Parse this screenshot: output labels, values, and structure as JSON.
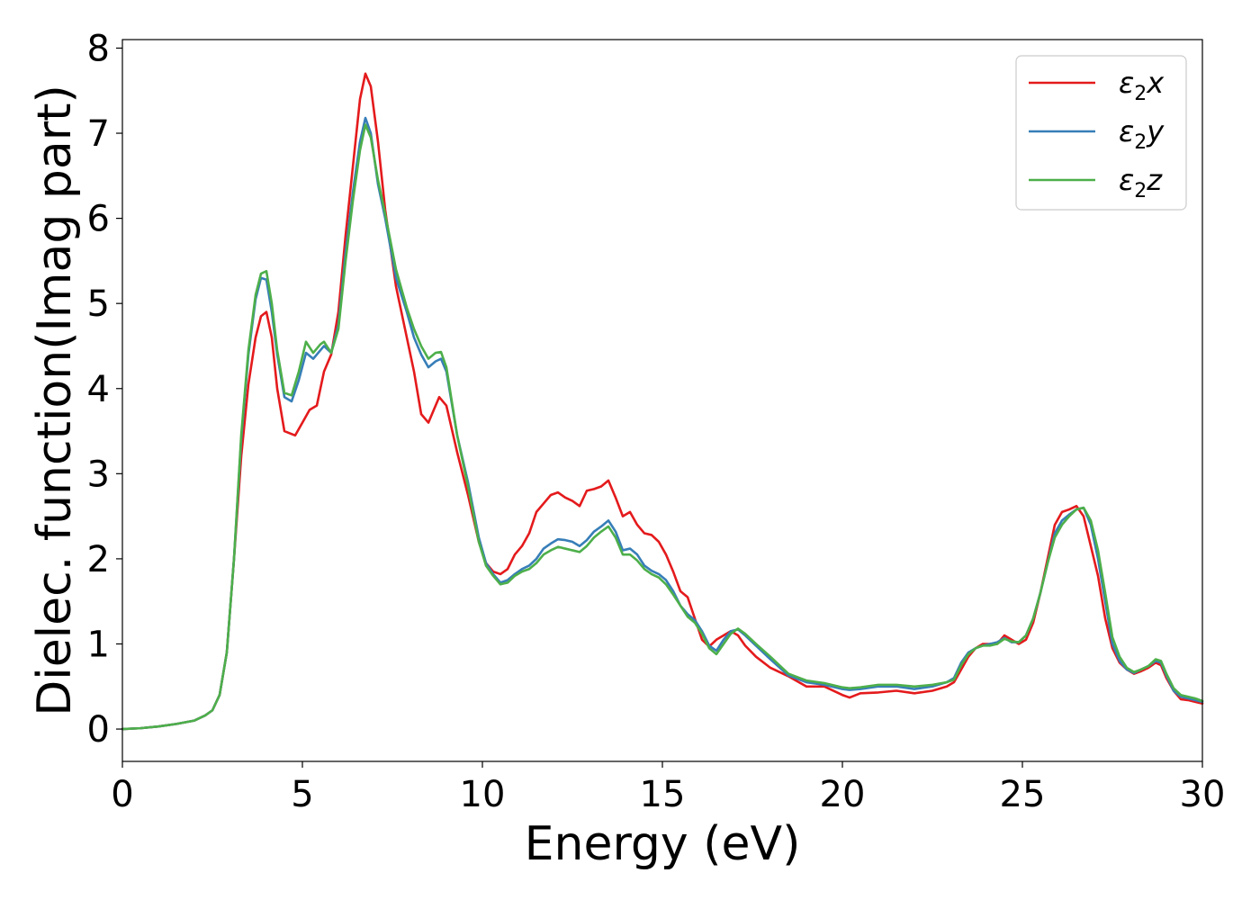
{
  "chart_data": {
    "type": "line",
    "title": "",
    "xlabel": "Energy (eV)",
    "ylabel": "Dielec. function(Imag part)",
    "xlim": [
      0,
      30
    ],
    "ylim": [
      -0.38,
      8.1
    ],
    "xticks": [
      0,
      5,
      10,
      15,
      20,
      25,
      30
    ],
    "yticks": [
      0,
      1,
      2,
      3,
      4,
      5,
      6,
      7,
      8
    ],
    "grid": false,
    "legend_position": "top-right",
    "series": [
      {
        "name": "ε₂x",
        "legend_base": "ε",
        "legend_sub": "2",
        "legend_suffix": "x",
        "color": "#e41a1c",
        "x": [
          0,
          0.5,
          1,
          1.5,
          2,
          2.3,
          2.5,
          2.7,
          2.9,
          3.1,
          3.3,
          3.5,
          3.7,
          3.85,
          4.0,
          4.15,
          4.3,
          4.5,
          4.8,
          5.0,
          5.2,
          5.4,
          5.6,
          5.8,
          6.0,
          6.2,
          6.4,
          6.6,
          6.75,
          6.9,
          7.1,
          7.3,
          7.6,
          7.9,
          8.1,
          8.3,
          8.5,
          8.65,
          8.8,
          9.0,
          9.3,
          9.6,
          9.9,
          10.1,
          10.3,
          10.5,
          10.7,
          10.9,
          11.1,
          11.3,
          11.5,
          11.7,
          11.9,
          12.1,
          12.3,
          12.5,
          12.7,
          12.9,
          13.1,
          13.3,
          13.5,
          13.7,
          13.9,
          14.1,
          14.3,
          14.5,
          14.7,
          14.9,
          15.1,
          15.3,
          15.5,
          15.7,
          15.9,
          16.1,
          16.3,
          16.5,
          16.7,
          16.9,
          17.1,
          17.3,
          17.6,
          18.0,
          18.5,
          19.0,
          19.5,
          20.0,
          20.2,
          20.5,
          21.0,
          21.5,
          22.0,
          22.5,
          22.9,
          23.1,
          23.3,
          23.5,
          23.7,
          23.9,
          24.1,
          24.3,
          24.5,
          24.7,
          24.9,
          25.1,
          25.3,
          25.5,
          25.7,
          25.9,
          26.1,
          26.3,
          26.5,
          26.7,
          26.9,
          27.1,
          27.3,
          27.5,
          27.7,
          27.9,
          28.1,
          28.3,
          28.5,
          28.7,
          28.85,
          29.0,
          29.2,
          29.4,
          29.6,
          29.8,
          30.0
        ],
        "values": [
          0.0,
          0.01,
          0.03,
          0.06,
          0.1,
          0.16,
          0.22,
          0.4,
          0.9,
          2.0,
          3.2,
          4.05,
          4.6,
          4.85,
          4.9,
          4.6,
          4.0,
          3.5,
          3.45,
          3.6,
          3.75,
          3.8,
          4.2,
          4.4,
          4.9,
          5.8,
          6.6,
          7.4,
          7.7,
          7.55,
          6.9,
          6.1,
          5.2,
          4.6,
          4.2,
          3.7,
          3.6,
          3.75,
          3.9,
          3.8,
          3.25,
          2.75,
          2.2,
          1.95,
          1.85,
          1.82,
          1.88,
          2.05,
          2.15,
          2.3,
          2.55,
          2.65,
          2.75,
          2.78,
          2.72,
          2.68,
          2.62,
          2.8,
          2.82,
          2.85,
          2.92,
          2.72,
          2.5,
          2.55,
          2.4,
          2.3,
          2.28,
          2.2,
          2.05,
          1.85,
          1.62,
          1.55,
          1.3,
          1.05,
          0.97,
          1.05,
          1.1,
          1.15,
          1.1,
          0.98,
          0.85,
          0.72,
          0.62,
          0.5,
          0.5,
          0.4,
          0.37,
          0.42,
          0.43,
          0.45,
          0.42,
          0.45,
          0.5,
          0.55,
          0.7,
          0.85,
          0.95,
          1.0,
          1.0,
          1.0,
          1.1,
          1.05,
          1.0,
          1.05,
          1.25,
          1.6,
          2.0,
          2.4,
          2.55,
          2.58,
          2.62,
          2.5,
          2.15,
          1.8,
          1.3,
          0.95,
          0.78,
          0.7,
          0.65,
          0.68,
          0.72,
          0.78,
          0.75,
          0.6,
          0.45,
          0.35,
          0.34,
          0.32,
          0.3
        ]
      },
      {
        "name": "ε₂y",
        "legend_base": "ε",
        "legend_sub": "2",
        "legend_suffix": "y",
        "color": "#377eb8",
        "x": [
          0,
          0.5,
          1,
          1.5,
          2,
          2.3,
          2.5,
          2.7,
          2.9,
          3.1,
          3.3,
          3.5,
          3.7,
          3.85,
          4.0,
          4.15,
          4.3,
          4.5,
          4.7,
          4.9,
          5.1,
          5.3,
          5.5,
          5.6,
          5.8,
          6.0,
          6.2,
          6.4,
          6.6,
          6.75,
          6.9,
          7.1,
          7.3,
          7.6,
          7.9,
          8.1,
          8.3,
          8.5,
          8.7,
          8.85,
          9.0,
          9.3,
          9.6,
          9.9,
          10.1,
          10.3,
          10.5,
          10.7,
          10.9,
          11.1,
          11.3,
          11.5,
          11.7,
          11.9,
          12.1,
          12.3,
          12.5,
          12.7,
          12.9,
          13.1,
          13.3,
          13.5,
          13.7,
          13.9,
          14.1,
          14.3,
          14.5,
          14.7,
          14.9,
          15.1,
          15.3,
          15.5,
          15.7,
          15.9,
          16.1,
          16.3,
          16.5,
          16.7,
          16.9,
          17.1,
          17.3,
          17.6,
          18.0,
          18.5,
          19.0,
          19.5,
          20.0,
          20.2,
          20.5,
          21.0,
          21.5,
          22.0,
          22.5,
          22.9,
          23.1,
          23.3,
          23.5,
          23.7,
          23.9,
          24.1,
          24.3,
          24.5,
          24.7,
          24.9,
          25.1,
          25.3,
          25.5,
          25.7,
          25.9,
          26.1,
          26.3,
          26.5,
          26.7,
          26.9,
          27.1,
          27.3,
          27.5,
          27.7,
          27.9,
          28.1,
          28.3,
          28.5,
          28.7,
          28.85,
          29.0,
          29.2,
          29.4,
          29.6,
          29.8,
          30.0
        ],
        "values": [
          0.0,
          0.01,
          0.03,
          0.06,
          0.1,
          0.16,
          0.22,
          0.4,
          0.9,
          2.0,
          3.4,
          4.4,
          5.05,
          5.3,
          5.28,
          4.9,
          4.4,
          3.9,
          3.85,
          4.1,
          4.42,
          4.35,
          4.45,
          4.5,
          4.42,
          4.75,
          5.6,
          6.3,
          6.9,
          7.18,
          7.0,
          6.4,
          6.0,
          5.3,
          4.9,
          4.6,
          4.4,
          4.25,
          4.32,
          4.35,
          4.2,
          3.45,
          2.9,
          2.25,
          1.95,
          1.82,
          1.72,
          1.75,
          1.82,
          1.88,
          1.92,
          2.0,
          2.12,
          2.18,
          2.23,
          2.22,
          2.2,
          2.15,
          2.22,
          2.32,
          2.38,
          2.45,
          2.32,
          2.1,
          2.12,
          2.05,
          1.92,
          1.86,
          1.82,
          1.75,
          1.62,
          1.45,
          1.35,
          1.28,
          1.15,
          0.98,
          0.92,
          1.05,
          1.15,
          1.17,
          1.1,
          0.98,
          0.82,
          0.63,
          0.55,
          0.52,
          0.47,
          0.46,
          0.47,
          0.5,
          0.5,
          0.47,
          0.5,
          0.55,
          0.6,
          0.78,
          0.9,
          0.95,
          0.98,
          1.0,
          1.02,
          1.07,
          1.02,
          1.02,
          1.1,
          1.3,
          1.6,
          1.95,
          2.3,
          2.45,
          2.52,
          2.58,
          2.6,
          2.4,
          2.0,
          1.5,
          1.0,
          0.8,
          0.7,
          0.66,
          0.7,
          0.74,
          0.8,
          0.78,
          0.63,
          0.45,
          0.38,
          0.36,
          0.34,
          0.32
        ]
      },
      {
        "name": "ε₂z",
        "legend_base": "ε",
        "legend_sub": "2",
        "legend_suffix": "z",
        "color": "#4daf4a",
        "x": [
          0,
          0.5,
          1,
          1.5,
          2,
          2.3,
          2.5,
          2.7,
          2.9,
          3.1,
          3.3,
          3.5,
          3.7,
          3.85,
          4.0,
          4.15,
          4.3,
          4.5,
          4.7,
          4.9,
          5.1,
          5.3,
          5.5,
          5.6,
          5.8,
          6.0,
          6.2,
          6.4,
          6.6,
          6.75,
          6.9,
          7.1,
          7.3,
          7.6,
          7.9,
          8.1,
          8.3,
          8.5,
          8.7,
          8.85,
          9.0,
          9.3,
          9.6,
          9.9,
          10.1,
          10.3,
          10.5,
          10.7,
          10.9,
          11.1,
          11.3,
          11.5,
          11.7,
          11.9,
          12.1,
          12.3,
          12.5,
          12.7,
          12.9,
          13.1,
          13.3,
          13.5,
          13.7,
          13.9,
          14.1,
          14.3,
          14.5,
          14.7,
          14.9,
          15.1,
          15.3,
          15.5,
          15.7,
          15.9,
          16.1,
          16.3,
          16.5,
          16.7,
          16.9,
          17.1,
          17.3,
          17.6,
          18.0,
          18.5,
          19.0,
          19.5,
          20.0,
          20.2,
          20.5,
          21.0,
          21.5,
          22.0,
          22.5,
          22.9,
          23.1,
          23.3,
          23.5,
          23.7,
          23.9,
          24.1,
          24.3,
          24.5,
          24.7,
          24.9,
          25.1,
          25.3,
          25.5,
          25.7,
          25.9,
          26.1,
          26.3,
          26.5,
          26.7,
          26.9,
          27.1,
          27.3,
          27.5,
          27.7,
          27.9,
          28.1,
          28.3,
          28.5,
          28.7,
          28.85,
          29.0,
          29.2,
          29.4,
          29.6,
          29.8,
          30.0
        ],
        "values": [
          0.0,
          0.01,
          0.03,
          0.06,
          0.1,
          0.16,
          0.22,
          0.4,
          0.9,
          2.0,
          3.45,
          4.45,
          5.1,
          5.35,
          5.38,
          5.0,
          4.45,
          3.95,
          3.92,
          4.2,
          4.55,
          4.42,
          4.52,
          4.55,
          4.42,
          4.7,
          5.5,
          6.2,
          6.8,
          7.1,
          6.95,
          6.45,
          6.05,
          5.4,
          4.95,
          4.7,
          4.5,
          4.35,
          4.42,
          4.43,
          4.25,
          3.45,
          2.85,
          2.2,
          1.92,
          1.8,
          1.7,
          1.72,
          1.8,
          1.85,
          1.88,
          1.95,
          2.05,
          2.1,
          2.14,
          2.12,
          2.1,
          2.08,
          2.15,
          2.25,
          2.32,
          2.38,
          2.25,
          2.05,
          2.05,
          1.98,
          1.88,
          1.82,
          1.78,
          1.7,
          1.58,
          1.45,
          1.32,
          1.25,
          1.12,
          0.95,
          0.88,
          1.0,
          1.12,
          1.18,
          1.12,
          1.0,
          0.85,
          0.65,
          0.57,
          0.54,
          0.49,
          0.48,
          0.49,
          0.52,
          0.52,
          0.5,
          0.52,
          0.55,
          0.58,
          0.75,
          0.88,
          0.95,
          0.98,
          0.98,
          1.0,
          1.06,
          1.03,
          1.02,
          1.1,
          1.3,
          1.6,
          1.95,
          2.25,
          2.4,
          2.5,
          2.58,
          2.6,
          2.45,
          2.1,
          1.6,
          1.08,
          0.85,
          0.72,
          0.67,
          0.7,
          0.74,
          0.82,
          0.8,
          0.65,
          0.48,
          0.4,
          0.38,
          0.36,
          0.33
        ]
      }
    ]
  }
}
